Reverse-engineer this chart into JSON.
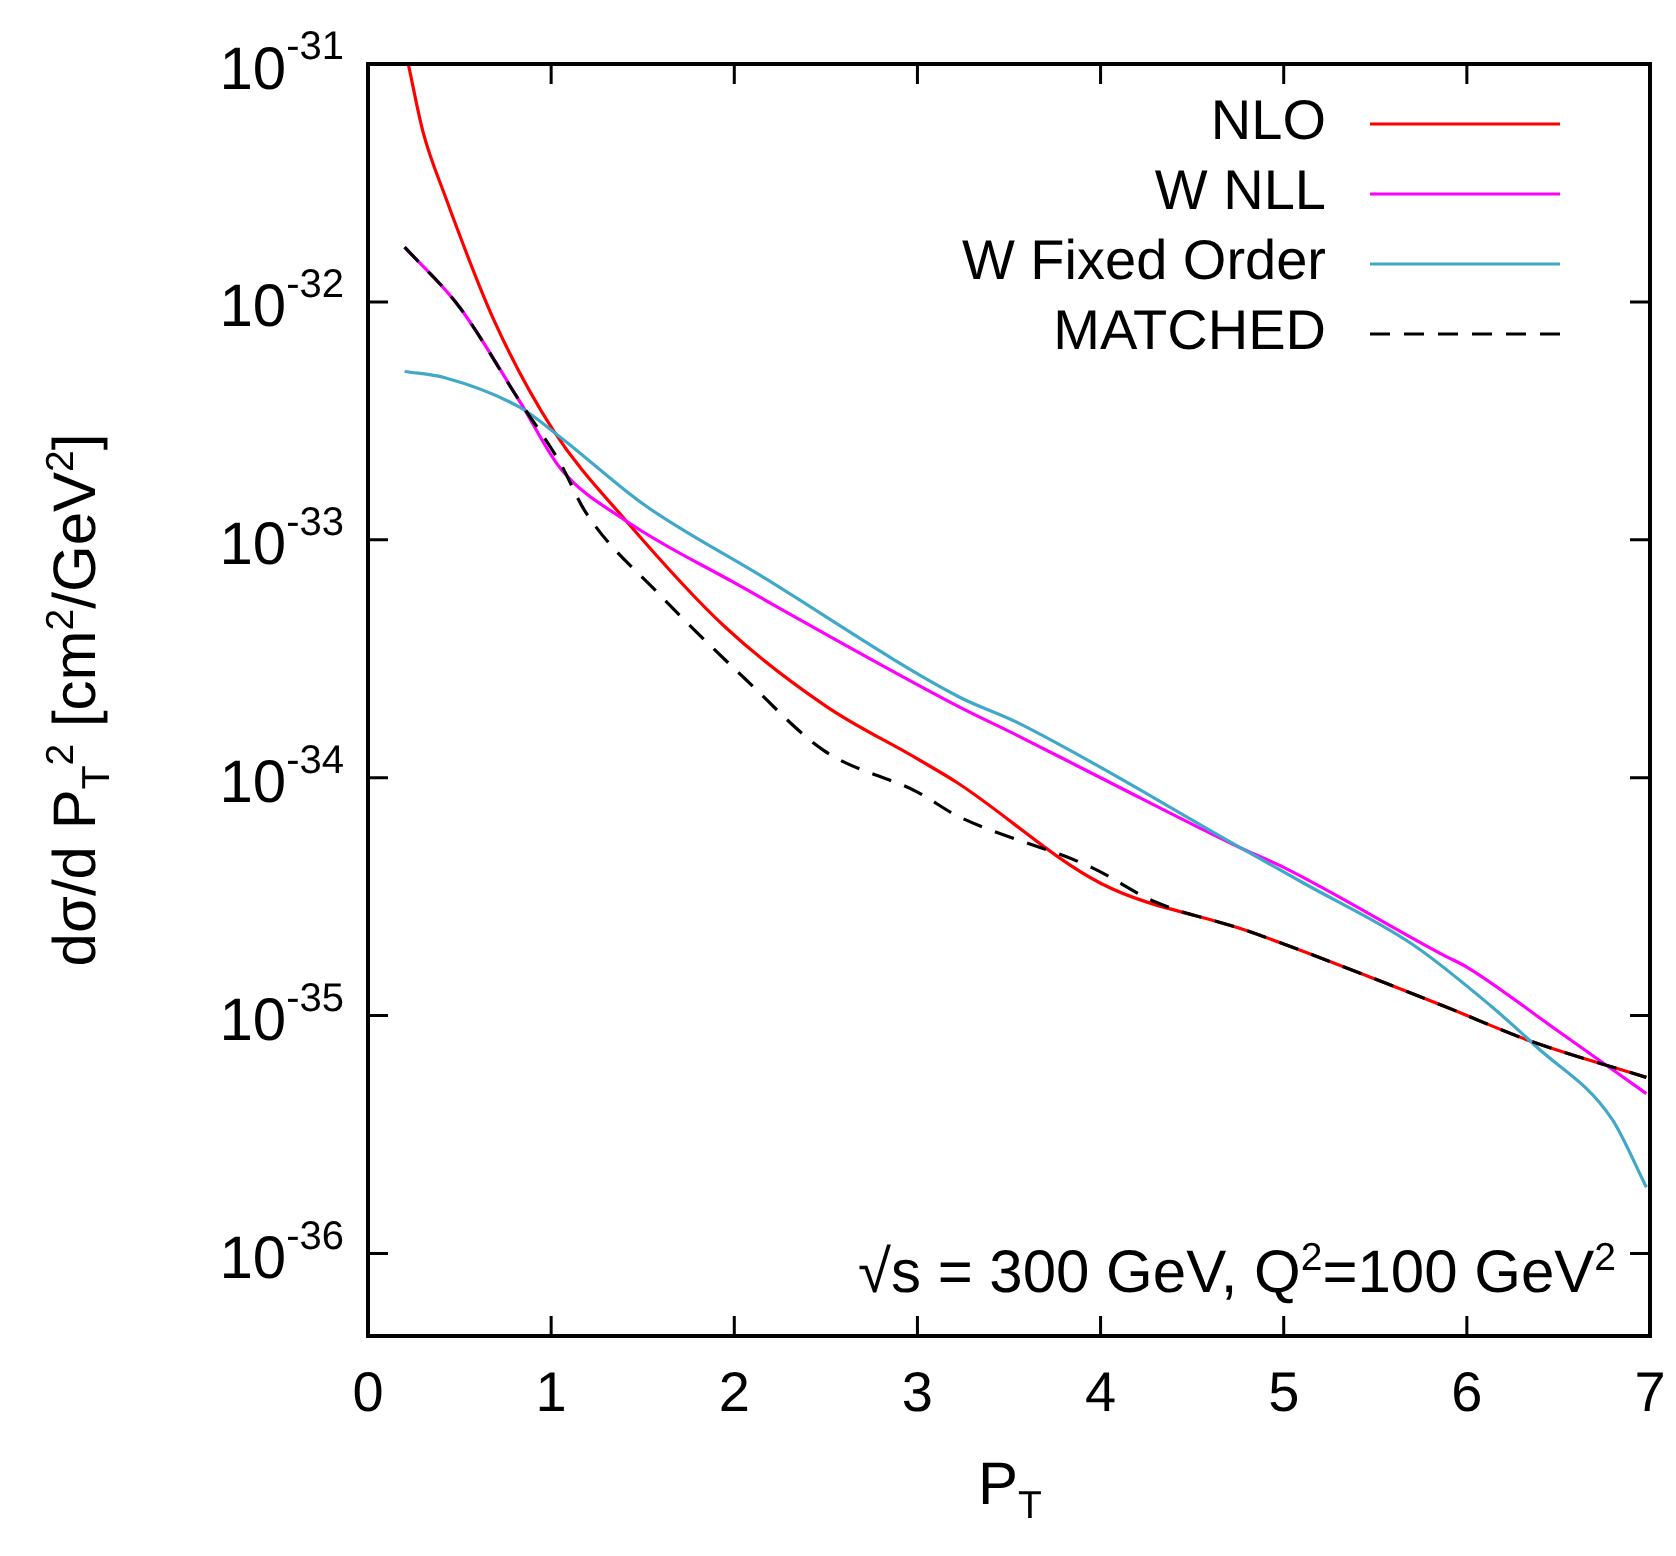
{
  "chart_data": {
    "type": "line",
    "xlabel": "P$_{T}$",
    "ylabel": "dσ/d P$_{T}$$^{2}$ [cm$^{2}$/GeV$^{2}$]",
    "annotations": [
      "√s = 300 GeV,  Q$^{2}$=100 GeV$^{2}$"
    ],
    "log": "y",
    "grid": false,
    "legend": "top right",
    "xlim": [
      0,
      7
    ],
    "xticks": [
      0,
      1,
      2,
      3,
      4,
      5,
      6,
      7
    ],
    "ylim": [
      4.5e-37,
      1e-31
    ],
    "yticks": [
      {
        "value": 1e-31,
        "label": "10$^{-31}$"
      },
      {
        "value": 1e-32,
        "label": "10$^{-32}$"
      },
      {
        "value": 1e-33,
        "label": "10$^{-33}$"
      },
      {
        "value": 1e-34,
        "label": "10$^{-34}$"
      },
      {
        "value": 1e-35,
        "label": "10$^{-35}$"
      },
      {
        "value": 1e-36,
        "label": "10$^{-36}$"
      }
    ],
    "series": [
      {
        "name": "NLO",
        "color": "#ff0000",
        "x": [
          0.22,
          0.3,
          0.42,
          0.69,
          1.01,
          1.41,
          1.95,
          2.5,
          3.0,
          3.22,
          4.0,
          4.78,
          5.0,
          5.87,
          6.35,
          6.98
        ],
        "values": [
          1e-31,
          5.2e-32,
          2.8e-32,
          8.3e-33,
          2.9e-33,
          1.2e-33,
          4.3e-34,
          2e-34,
          1.2e-34,
          9.5e-35,
          3.6e-35,
          2.3e-35,
          2e-35,
          1.1e-35,
          7.8e-36,
          5.5e-36
        ]
      },
      {
        "name": "W NLL",
        "color": "#ff00ff",
        "x": [
          0.2,
          0.5,
          0.83,
          1.05,
          1.41,
          2.0,
          3.22,
          3.55,
          4.0,
          4.78,
          5.0,
          5.87,
          6.0,
          6.49,
          6.98
        ],
        "values": [
          1.7e-32,
          9.5e-33,
          3.8e-33,
          2e-33,
          1.2e-33,
          6.6e-34,
          2e-34,
          1.5e-34,
          1e-34,
          5e-35,
          4.2e-35,
          1.8e-35,
          1.6e-35,
          8.7e-36,
          4.7e-36
        ]
      },
      {
        "name": "W Fixed Order",
        "color": "#40a8c8",
        "x": [
          0.2,
          0.42,
          0.83,
          1.05,
          1.51,
          2.14,
          3.22,
          3.55,
          4.78,
          5.11,
          5.7,
          6.13,
          6.38,
          6.79,
          6.98
        ],
        "values": [
          5.1e-33,
          4.8e-33,
          3.6e-33,
          2.7e-33,
          1.4e-33,
          7.1e-34,
          2.2e-34,
          1.7e-34,
          5e-35,
          3.6e-35,
          2e-35,
          1.1e-35,
          7.4e-36,
          3.7e-36,
          1.9e-36
        ]
      },
      {
        "name": "MATCHED",
        "color": "#000000",
        "line_style": "dashed",
        "x": [
          0.2,
          0.5,
          0.83,
          1.05,
          1.19,
          1.59,
          2.06,
          2.49,
          3.0,
          3.22,
          3.95,
          4.3,
          4.78,
          5.0,
          5.87,
          6.35,
          6.98
        ],
        "values": [
          1.7e-32,
          9.5e-33,
          3.8e-33,
          2.1e-33,
          1.3e-33,
          5.9e-34,
          2.6e-34,
          1.3e-34,
          8.7e-35,
          6.9e-35,
          4.2e-35,
          3e-35,
          2.3e-35,
          2e-35,
          1.1e-35,
          7.8e-36,
          5.5e-36
        ]
      }
    ]
  }
}
